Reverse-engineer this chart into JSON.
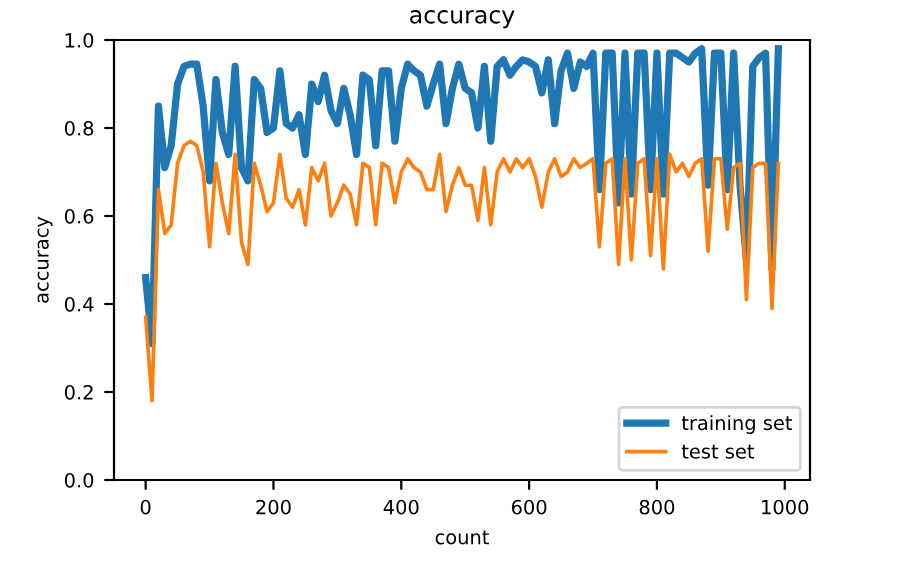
{
  "chart_data": {
    "type": "line",
    "title": "accuracy",
    "xlabel": "count",
    "ylabel": "accuracy",
    "x": [
      0,
      10,
      20,
      30,
      40,
      50,
      60,
      70,
      80,
      90,
      100,
      110,
      120,
      130,
      140,
      150,
      160,
      170,
      180,
      190,
      200,
      210,
      220,
      230,
      240,
      250,
      260,
      270,
      280,
      290,
      300,
      310,
      320,
      330,
      340,
      350,
      360,
      370,
      380,
      390,
      400,
      410,
      420,
      430,
      440,
      450,
      460,
      470,
      480,
      490,
      500,
      510,
      520,
      530,
      540,
      550,
      560,
      570,
      580,
      590,
      600,
      610,
      620,
      630,
      640,
      650,
      660,
      670,
      680,
      690,
      700,
      710,
      720,
      730,
      740,
      750,
      760,
      770,
      780,
      790,
      800,
      810,
      820,
      830,
      840,
      850,
      860,
      870,
      880,
      890,
      900,
      910,
      920,
      930,
      940,
      950,
      960,
      970,
      980,
      990
    ],
    "series": [
      {
        "name": "training set",
        "color": "#1f77b4",
        "values": [
          0.46,
          0.31,
          0.85,
          0.71,
          0.76,
          0.9,
          0.94,
          0.945,
          0.945,
          0.85,
          0.68,
          0.91,
          0.79,
          0.74,
          0.94,
          0.71,
          0.68,
          0.91,
          0.89,
          0.79,
          0.8,
          0.93,
          0.81,
          0.8,
          0.83,
          0.74,
          0.9,
          0.86,
          0.92,
          0.84,
          0.81,
          0.89,
          0.83,
          0.74,
          0.92,
          0.91,
          0.76,
          0.93,
          0.93,
          0.77,
          0.89,
          0.945,
          0.93,
          0.92,
          0.85,
          0.9,
          0.945,
          0.81,
          0.89,
          0.945,
          0.89,
          0.88,
          0.8,
          0.94,
          0.77,
          0.94,
          0.955,
          0.92,
          0.94,
          0.955,
          0.95,
          0.94,
          0.88,
          0.955,
          0.81,
          0.93,
          0.97,
          0.89,
          0.95,
          0.94,
          0.97,
          0.66,
          0.97,
          0.97,
          0.63,
          0.97,
          0.65,
          0.97,
          0.97,
          0.66,
          0.97,
          0.65,
          0.97,
          0.97,
          0.96,
          0.95,
          0.97,
          0.98,
          0.67,
          0.97,
          0.97,
          0.66,
          0.97,
          0.67,
          0.5,
          0.94,
          0.96,
          0.97,
          0.48,
          0.98
        ]
      },
      {
        "name": "test set",
        "color": "#ff7f0e",
        "values": [
          0.37,
          0.18,
          0.66,
          0.56,
          0.58,
          0.72,
          0.76,
          0.77,
          0.76,
          0.7,
          0.53,
          0.72,
          0.63,
          0.56,
          0.74,
          0.54,
          0.49,
          0.72,
          0.67,
          0.61,
          0.63,
          0.74,
          0.64,
          0.62,
          0.66,
          0.58,
          0.71,
          0.68,
          0.72,
          0.6,
          0.63,
          0.67,
          0.65,
          0.58,
          0.72,
          0.71,
          0.58,
          0.72,
          0.71,
          0.63,
          0.7,
          0.73,
          0.71,
          0.7,
          0.66,
          0.66,
          0.74,
          0.61,
          0.67,
          0.71,
          0.67,
          0.67,
          0.59,
          0.71,
          0.58,
          0.7,
          0.73,
          0.7,
          0.73,
          0.71,
          0.73,
          0.69,
          0.62,
          0.7,
          0.73,
          0.69,
          0.7,
          0.73,
          0.71,
          0.72,
          0.73,
          0.53,
          0.72,
          0.73,
          0.49,
          0.73,
          0.5,
          0.72,
          0.73,
          0.51,
          0.73,
          0.48,
          0.74,
          0.7,
          0.72,
          0.69,
          0.72,
          0.73,
          0.52,
          0.73,
          0.73,
          0.57,
          0.71,
          0.72,
          0.41,
          0.71,
          0.72,
          0.72,
          0.39,
          0.72
        ]
      }
    ],
    "xlim": [
      -49.5,
      1039.5
    ],
    "xticks": [
      0,
      200,
      400,
      600,
      800,
      1000
    ],
    "ylim": [
      0,
      1
    ],
    "yticks": [
      {
        "value": 0,
        "label": "0.0"
      },
      {
        "value": 0.2,
        "label": "0.2"
      },
      {
        "value": 0.4,
        "label": "0.4"
      },
      {
        "value": 0.6,
        "label": "0.6"
      },
      {
        "value": 0.8,
        "label": "0.8"
      },
      {
        "value": 1,
        "label": "1.0"
      }
    ],
    "legend": "lower right",
    "grid": false
  }
}
